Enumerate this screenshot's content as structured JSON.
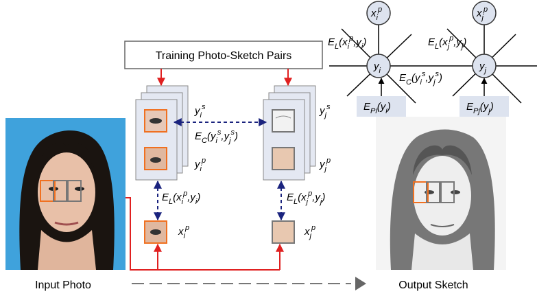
{
  "box_title": "Training Photo-Sketch Pairs",
  "input_label": "Input Photo",
  "output_label": "Output Sketch",
  "formulas": {
    "yi_s": [
      {
        "text": "y"
      },
      {
        "text": "i",
        "script": "sub"
      },
      {
        "text": "s",
        "script": "sup"
      }
    ],
    "yi_p": [
      {
        "text": "y"
      },
      {
        "text": "i",
        "script": "sub"
      },
      {
        "text": "p",
        "script": "sup"
      }
    ],
    "yj_s": [
      {
        "text": "y"
      },
      {
        "text": "j",
        "script": "sub"
      },
      {
        "text": "s",
        "script": "sup"
      }
    ],
    "yj_p": [
      {
        "text": "y"
      },
      {
        "text": "j",
        "script": "sub"
      },
      {
        "text": "p",
        "script": "sup"
      }
    ],
    "xi_p": [
      {
        "text": "x"
      },
      {
        "text": "i",
        "script": "sub"
      },
      {
        "text": "p",
        "script": "sup"
      }
    ],
    "xj_p": [
      {
        "text": "x"
      },
      {
        "text": "j",
        "script": "sub"
      },
      {
        "text": "p",
        "script": "sup"
      }
    ],
    "ec_mid": [
      {
        "text": "E"
      },
      {
        "text": "C",
        "script": "sub"
      },
      {
        "text": "(y"
      },
      {
        "text": "i",
        "script": "sub"
      },
      {
        "text": "s",
        "script": "sup"
      },
      {
        "text": ",y"
      },
      {
        "text": "j",
        "script": "sub"
      },
      {
        "text": "s",
        "script": "sup"
      },
      {
        "text": ")"
      }
    ],
    "el_left": [
      {
        "text": "E"
      },
      {
        "text": "L",
        "script": "sub"
      },
      {
        "text": "(x"
      },
      {
        "text": "i",
        "script": "sub"
      },
      {
        "text": "p",
        "script": "sup"
      },
      {
        "text": ",y"
      },
      {
        "text": "i",
        "script": "sub"
      },
      {
        "text": ")"
      }
    ],
    "el_right": [
      {
        "text": "E"
      },
      {
        "text": "L",
        "script": "sub"
      },
      {
        "text": "(x"
      },
      {
        "text": "j",
        "script": "sub"
      },
      {
        "text": "p",
        "script": "sup"
      },
      {
        "text": ",y"
      },
      {
        "text": "j",
        "script": "sub"
      },
      {
        "text": ")"
      }
    ],
    "graph_xi": [
      {
        "text": "x"
      },
      {
        "text": "i",
        "script": "sub"
      },
      {
        "text": "p",
        "script": "sup"
      }
    ],
    "graph_xj": [
      {
        "text": "x"
      },
      {
        "text": "j",
        "script": "sub"
      },
      {
        "text": "p",
        "script": "sup"
      }
    ],
    "graph_yi": [
      {
        "text": "y"
      },
      {
        "text": "i",
        "script": "sub"
      }
    ],
    "graph_yj": [
      {
        "text": "y"
      },
      {
        "text": "j",
        "script": "sub"
      }
    ],
    "graph_el_i": [
      {
        "text": "E"
      },
      {
        "text": "L",
        "script": "sub"
      },
      {
        "text": "(x"
      },
      {
        "text": "i",
        "script": "sub"
      },
      {
        "text": "p",
        "script": "sup"
      },
      {
        "text": ",y"
      },
      {
        "text": "i",
        "script": "sub"
      },
      {
        "text": ")"
      }
    ],
    "graph_el_j": [
      {
        "text": "E"
      },
      {
        "text": "L",
        "script": "sub"
      },
      {
        "text": "(x"
      },
      {
        "text": "j",
        "script": "sub"
      },
      {
        "text": "p",
        "script": "sup"
      },
      {
        "text": ",y"
      },
      {
        "text": "j",
        "script": "sub"
      },
      {
        "text": ")"
      }
    ],
    "graph_ec": [
      {
        "text": "E"
      },
      {
        "text": "C",
        "script": "sub"
      },
      {
        "text": "(y"
      },
      {
        "text": "i",
        "script": "sub"
      },
      {
        "text": "s",
        "script": "sup"
      },
      {
        "text": ",y"
      },
      {
        "text": "j",
        "script": "sub"
      },
      {
        "text": "s",
        "script": "sup"
      },
      {
        "text": ")"
      }
    ],
    "graph_epi": [
      {
        "text": "E"
      },
      {
        "text": "Pi",
        "script": "sub"
      },
      {
        "text": "(y"
      },
      {
        "text": "i",
        "script": "sub"
      },
      {
        "text": ")"
      }
    ],
    "graph_epj": [
      {
        "text": "E"
      },
      {
        "text": "Pj",
        "script": "sub"
      },
      {
        "text": "(y"
      },
      {
        "text": "j",
        "script": "sub"
      },
      {
        "text": ")"
      }
    ]
  }
}
